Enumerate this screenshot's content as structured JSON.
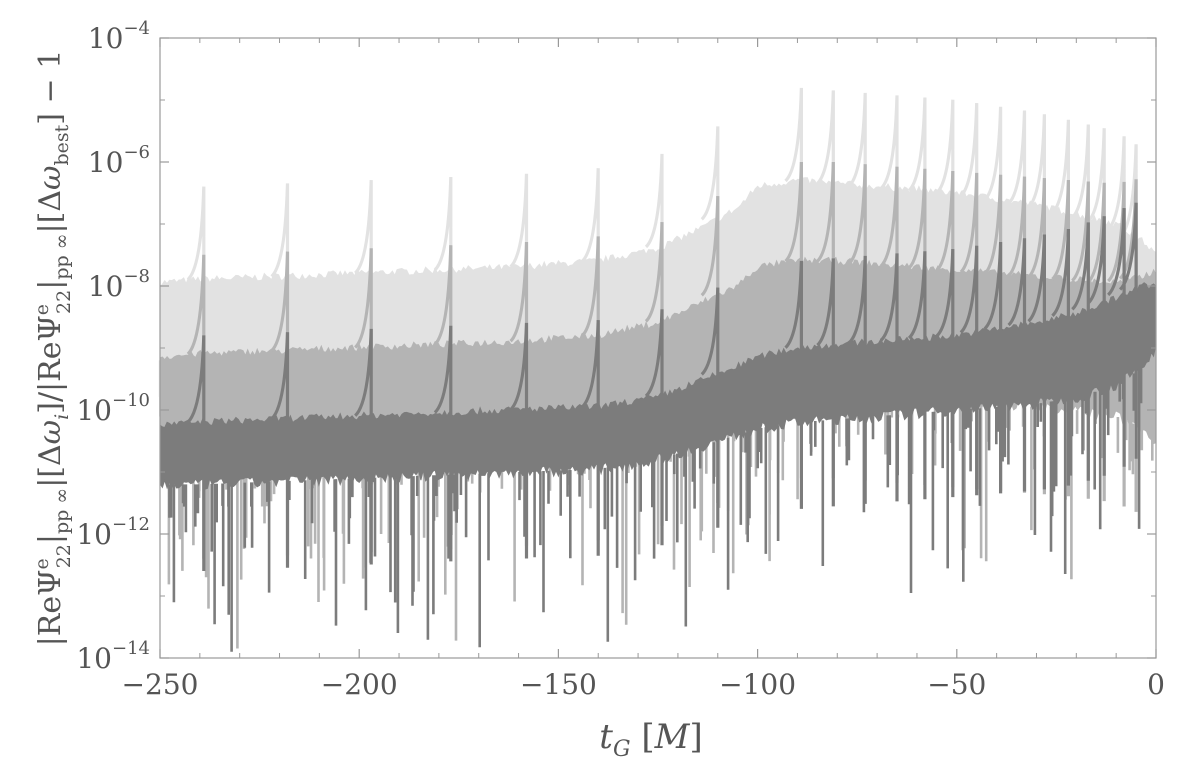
{
  "chart_data": {
    "type": "line",
    "title": "",
    "xlabel": "t_G [M]",
    "ylabel": "|ReΨ^e_22|_pp ∞ |[Δω_i]/|ReΨ^e_22|_pp ∞ |[Δω_best] − 1",
    "xlim": [
      -250,
      0
    ],
    "ylim_exponent": [
      -14,
      -4
    ],
    "y_scale": "log",
    "x_ticks": [
      -250,
      -200,
      -150,
      -100,
      -50,
      0
    ],
    "x_tick_labels": [
      "−250",
      "−200",
      "−150",
      "−100",
      "−50",
      "0"
    ],
    "y_ticks_exponent": [
      -14,
      -12,
      -10,
      -8,
      -6,
      -4
    ],
    "y_tick_labels": [
      {
        "base": "10",
        "exp": "−14"
      },
      {
        "base": "10",
        "exp": "−12"
      },
      {
        "base": "10",
        "exp": "−10"
      },
      {
        "base": "10",
        "exp": "−8"
      },
      {
        "base": "10",
        "exp": "−6"
      },
      {
        "base": "10",
        "exp": "−4"
      }
    ],
    "grid": false,
    "legend": "none",
    "spike_times": [
      -239,
      -218,
      -197,
      -177,
      -158,
      -140,
      -124,
      -110,
      -89,
      -81,
      -73,
      -65,
      -58,
      -51,
      -45,
      -39,
      -33,
      -28,
      -22,
      -17,
      -13,
      -8,
      -5
    ],
    "series": [
      {
        "color": "#e2e2e2",
        "x": [
          -250,
          -240,
          -220,
          -200,
          -180,
          -160,
          -140,
          -125,
          -115,
          -105,
          -100,
          -90,
          -80,
          -70,
          -60,
          -50,
          -40,
          -30,
          -20,
          -10,
          -3,
          0
        ],
        "log10_upper": [
          -7.95,
          -7.9,
          -7.85,
          -7.8,
          -7.75,
          -7.7,
          -7.6,
          -7.4,
          -7.1,
          -6.75,
          -6.4,
          -6.3,
          -6.35,
          -6.4,
          -6.45,
          -6.5,
          -6.6,
          -6.7,
          -6.85,
          -7.0,
          -7.3,
          -7.5
        ],
        "log10_lower": [
          -9.2,
          -9.2,
          -9.15,
          -9.1,
          -9.05,
          -9.0,
          -8.9,
          -8.7,
          -8.4,
          -8.2,
          -8.0,
          -7.95,
          -7.95,
          -8.0,
          -8.0,
          -8.05,
          -8.1,
          -8.2,
          -8.3,
          -8.5,
          -9.0,
          -9.5
        ]
      },
      {
        "color": "#b4b4b4",
        "x": [
          -250,
          -240,
          -220,
          -200,
          -180,
          -160,
          -140,
          -125,
          -115,
          -105,
          -100,
          -90,
          -80,
          -70,
          -60,
          -50,
          -40,
          -30,
          -20,
          -10,
          -3,
          0
        ],
        "log10_upper": [
          -9.15,
          -9.1,
          -9.05,
          -9.0,
          -8.95,
          -8.9,
          -8.8,
          -8.6,
          -8.3,
          -8.0,
          -7.7,
          -7.6,
          -7.6,
          -7.65,
          -7.7,
          -7.75,
          -7.8,
          -7.85,
          -7.9,
          -7.95,
          -7.85,
          -7.75
        ],
        "log10_lower": [
          -11.0,
          -11.0,
          -10.95,
          -10.9,
          -10.85,
          -10.8,
          -10.7,
          -10.5,
          -10.2,
          -10.0,
          -9.8,
          -9.7,
          -9.7,
          -9.75,
          -9.8,
          -9.85,
          -9.9,
          -9.95,
          -10.0,
          -10.1,
          -10.3,
          -10.5
        ]
      },
      {
        "color": "#7c7c7c",
        "x": [
          -250,
          -240,
          -220,
          -200,
          -180,
          -160,
          -140,
          -125,
          -115,
          -105,
          -100,
          -90,
          -80,
          -70,
          -60,
          -50,
          -40,
          -30,
          -20,
          -10,
          -3,
          0
        ],
        "log10_upper": [
          -10.25,
          -10.2,
          -10.15,
          -10.1,
          -10.05,
          -10.0,
          -9.95,
          -9.8,
          -9.55,
          -9.3,
          -9.15,
          -9.0,
          -8.95,
          -8.9,
          -8.85,
          -8.8,
          -8.7,
          -8.6,
          -8.45,
          -8.2,
          -8.0,
          -8.0
        ],
        "log10_lower": [
          -11.2,
          -11.2,
          -11.15,
          -11.1,
          -11.05,
          -11.0,
          -10.95,
          -10.8,
          -10.6,
          -10.4,
          -10.3,
          -10.2,
          -10.15,
          -10.1,
          -10.05,
          -10.0,
          -9.95,
          -9.9,
          -9.8,
          -9.6,
          -9.3,
          -9.0
        ]
      }
    ]
  }
}
